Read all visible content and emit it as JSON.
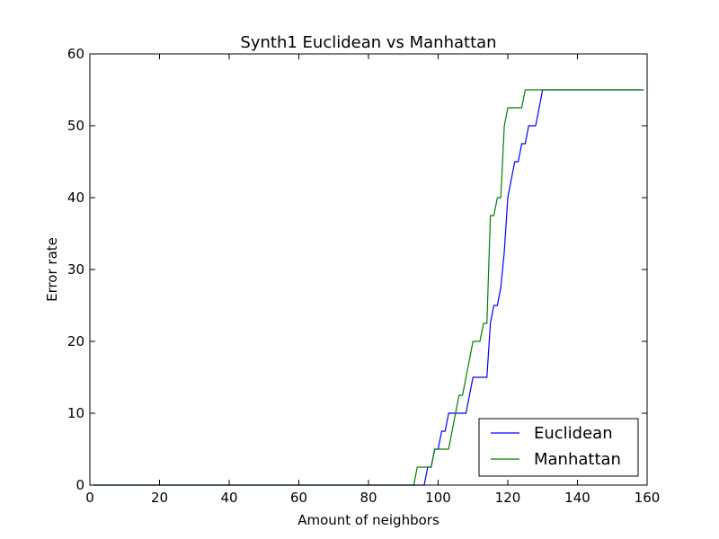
{
  "chart_data": {
    "type": "line",
    "title": "Synth1 Euclidean vs Manhattan",
    "xlabel": "Amount of neighbors",
    "ylabel": "Error rate",
    "xlim": [
      0,
      160
    ],
    "ylim": [
      0,
      60
    ],
    "xticks": [
      "0",
      "20",
      "40",
      "60",
      "80",
      "100",
      "120",
      "140",
      "160"
    ],
    "yticks": [
      "0",
      "10",
      "20",
      "30",
      "40",
      "50",
      "60"
    ],
    "grid": false,
    "legend_position": "lower-right",
    "series": [
      {
        "name": "Euclidean",
        "color": "#0000ff",
        "points": [
          [
            1,
            0
          ],
          [
            96,
            0
          ],
          [
            97,
            2.5
          ],
          [
            98,
            2.5
          ],
          [
            99,
            5
          ],
          [
            100,
            5
          ],
          [
            101,
            7.5
          ],
          [
            102,
            7.5
          ],
          [
            103,
            10
          ],
          [
            104,
            10
          ],
          [
            105,
            10
          ],
          [
            106,
            10
          ],
          [
            107,
            10
          ],
          [
            108,
            10
          ],
          [
            109,
            12.5
          ],
          [
            110,
            15
          ],
          [
            111,
            15
          ],
          [
            112,
            15
          ],
          [
            113,
            15
          ],
          [
            114,
            15
          ],
          [
            115,
            22.5
          ],
          [
            116,
            25
          ],
          [
            117,
            25
          ],
          [
            118,
            27.5
          ],
          [
            119,
            32.5
          ],
          [
            120,
            40
          ],
          [
            121,
            42.5
          ],
          [
            122,
            45
          ],
          [
            123,
            45
          ],
          [
            124,
            47.5
          ],
          [
            125,
            47.5
          ],
          [
            126,
            50
          ],
          [
            127,
            50
          ],
          [
            128,
            50
          ],
          [
            129,
            52.5
          ],
          [
            130,
            55
          ],
          [
            159,
            55
          ]
        ]
      },
      {
        "name": "Manhattan",
        "color": "#008000",
        "points": [
          [
            1,
            0
          ],
          [
            93,
            0
          ],
          [
            94,
            2.5
          ],
          [
            95,
            2.5
          ],
          [
            96,
            2.5
          ],
          [
            97,
            2.5
          ],
          [
            98,
            2.5
          ],
          [
            99,
            5
          ],
          [
            100,
            5
          ],
          [
            101,
            5
          ],
          [
            102,
            5
          ],
          [
            103,
            5
          ],
          [
            104,
            7.5
          ],
          [
            105,
            10
          ],
          [
            106,
            12.5
          ],
          [
            107,
            12.5
          ],
          [
            108,
            15
          ],
          [
            109,
            17.5
          ],
          [
            110,
            20
          ],
          [
            111,
            20
          ],
          [
            112,
            20
          ],
          [
            113,
            22.5
          ],
          [
            114,
            22.5
          ],
          [
            115,
            37.5
          ],
          [
            116,
            37.5
          ],
          [
            117,
            40
          ],
          [
            118,
            40
          ],
          [
            119,
            50
          ],
          [
            120,
            52.5
          ],
          [
            121,
            52.5
          ],
          [
            122,
            52.5
          ],
          [
            123,
            52.5
          ],
          [
            124,
            52.5
          ],
          [
            125,
            55
          ],
          [
            159,
            55
          ]
        ]
      }
    ]
  }
}
